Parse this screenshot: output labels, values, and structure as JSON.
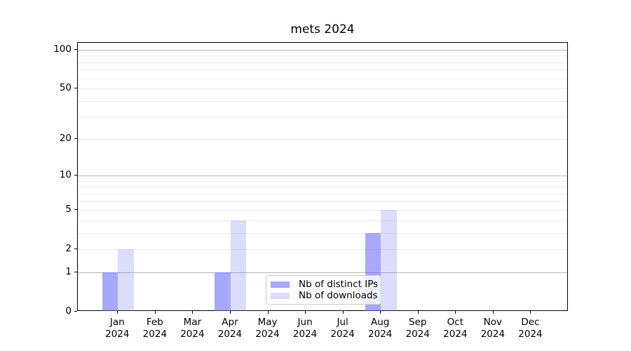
{
  "chart_data": {
    "type": "bar",
    "title": "mets 2024",
    "categories": [
      "Jan",
      "Feb",
      "Mar",
      "Apr",
      "May",
      "Jun",
      "Jul",
      "Aug",
      "Sep",
      "Oct",
      "Nov",
      "Dec"
    ],
    "category_sublabel": "2024",
    "series": [
      {
        "name": "Nb of distinct IPs",
        "color_hex": "#a8a8f6",
        "color_rgba": "rgba(97,97,245,0.55)",
        "values": [
          1,
          0,
          0,
          1,
          0,
          0,
          0,
          3,
          0,
          0,
          0,
          0
        ]
      },
      {
        "name": "Nb of downloads",
        "color_hex": "#dcdcf9",
        "color_rgba": "rgba(97,97,245,0.22)",
        "values": [
          2,
          0,
          0,
          4,
          0,
          0,
          0,
          5,
          0,
          0,
          0,
          0
        ]
      }
    ],
    "yscale": "log1p",
    "ylim": [
      0,
      114
    ],
    "yticks": [
      0,
      1,
      2,
      5,
      10,
      20,
      50,
      100
    ],
    "grid": {
      "major_values": [
        1,
        10,
        100
      ],
      "minor_values": [
        2,
        3,
        4,
        5,
        6,
        7,
        8,
        9,
        20,
        30,
        40,
        50,
        60,
        70,
        80,
        90
      ],
      "major_color": "#b4b4b4",
      "minor_color": "#ebebeb"
    },
    "legend_position": "lower center"
  }
}
